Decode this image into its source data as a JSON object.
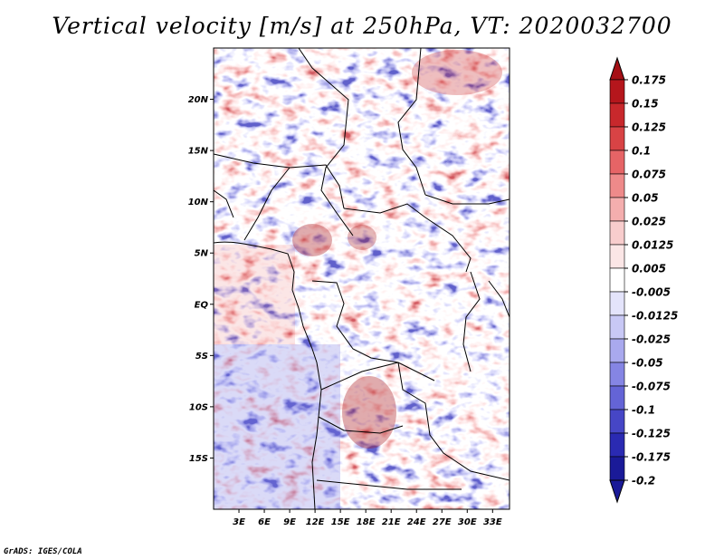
{
  "title": "Vertical velocity [m/s] at 250hPa, VT: 2020032700",
  "credit": "GrADS: IGES/COLA",
  "map": {
    "lon_range": [
      0,
      35
    ],
    "lat_range": [
      -20,
      25
    ],
    "lat_ticks": [
      {
        "value": 20,
        "label": "20N"
      },
      {
        "value": 15,
        "label": "15N"
      },
      {
        "value": 10,
        "label": "10N"
      },
      {
        "value": 5,
        "label": "5N"
      },
      {
        "value": 0,
        "label": "EQ"
      },
      {
        "value": -5,
        "label": "5S"
      },
      {
        "value": -10,
        "label": "10S"
      },
      {
        "value": -15,
        "label": "15S"
      }
    ],
    "lon_ticks": [
      {
        "value": 3,
        "label": "3E"
      },
      {
        "value": 6,
        "label": "6E"
      },
      {
        "value": 9,
        "label": "9E"
      },
      {
        "value": 12,
        "label": "12E"
      },
      {
        "value": 15,
        "label": "15E"
      },
      {
        "value": 18,
        "label": "18E"
      },
      {
        "value": 21,
        "label": "21E"
      },
      {
        "value": 24,
        "label": "24E"
      },
      {
        "value": 27,
        "label": "27E"
      },
      {
        "value": 30,
        "label": "30E"
      },
      {
        "value": 33,
        "label": "33E"
      }
    ]
  },
  "colorbar": {
    "levels": [
      {
        "label": "0.175",
        "color": "#a50f15"
      },
      {
        "label": "0.15",
        "color": "#b5161c"
      },
      {
        "label": "0.125",
        "color": "#c8282c"
      },
      {
        "label": "0.1",
        "color": "#d84345"
      },
      {
        "label": "0.075",
        "color": "#e66466"
      },
      {
        "label": "0.05",
        "color": "#ee8a8a"
      },
      {
        "label": "0.025",
        "color": "#f4aeae"
      },
      {
        "label": "0.0125",
        "color": "#f8cdcd"
      },
      {
        "label": "0.005",
        "color": "#fbe6e6"
      },
      {
        "label": "-0.005",
        "color": "#ffffff"
      },
      {
        "label": "-0.0125",
        "color": "#e4e4fb"
      },
      {
        "label": "-0.025",
        "color": "#c8c8f5"
      },
      {
        "label": "-0.05",
        "color": "#a9a9ee"
      },
      {
        "label": "-0.075",
        "color": "#8585e4"
      },
      {
        "label": "-0.1",
        "color": "#6464d6"
      },
      {
        "label": "-0.125",
        "color": "#4646c6"
      },
      {
        "label": "-0.175",
        "color": "#2a2ab2"
      },
      {
        "label": "-0.2",
        "color": "#1a1a98"
      }
    ],
    "overflow_top_color": "#a50f15",
    "overflow_bottom_color": "#1a1a98"
  }
}
